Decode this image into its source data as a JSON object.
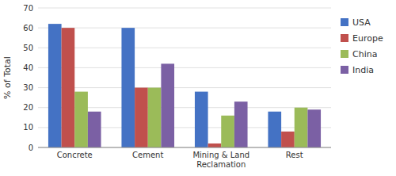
{
  "chart_data": {
    "type": "bar",
    "categories": [
      "Concrete",
      "Cement",
      "Mining & Land\nReclamation",
      "Rest"
    ],
    "series": [
      {
        "name": "USA",
        "color": "#4472C4",
        "values": [
          62,
          60,
          28,
          18
        ]
      },
      {
        "name": "Europe",
        "color": "#C0504D",
        "values": [
          60,
          30,
          2,
          8
        ]
      },
      {
        "name": "China",
        "color": "#9BBB59",
        "values": [
          28,
          30,
          16,
          20
        ]
      },
      {
        "name": "India",
        "color": "#7B60A4",
        "values": [
          18,
          42,
          23,
          19
        ]
      }
    ],
    "ylabel": "% of Total",
    "ylim": [
      0,
      70
    ],
    "yticks": [
      0,
      10,
      20,
      30,
      40,
      50,
      60,
      70
    ],
    "grid": true,
    "legend": "right"
  }
}
